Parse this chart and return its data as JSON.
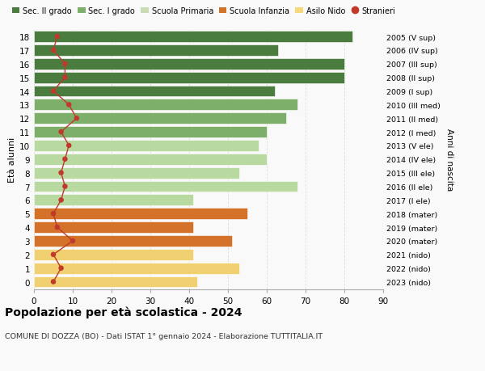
{
  "ages": [
    18,
    17,
    16,
    15,
    14,
    13,
    12,
    11,
    10,
    9,
    8,
    7,
    6,
    5,
    4,
    3,
    2,
    1,
    0
  ],
  "bar_values": [
    82,
    63,
    80,
    80,
    62,
    68,
    65,
    60,
    58,
    60,
    53,
    68,
    41,
    55,
    41,
    51,
    41,
    53,
    42
  ],
  "stranieri": [
    6,
    5,
    8,
    8,
    5,
    9,
    11,
    7,
    9,
    8,
    7,
    8,
    7,
    5,
    6,
    10,
    5,
    7,
    5
  ],
  "right_labels": [
    "2005 (V sup)",
    "2006 (IV sup)",
    "2007 (III sup)",
    "2008 (II sup)",
    "2009 (I sup)",
    "2010 (III med)",
    "2011 (II med)",
    "2012 (I med)",
    "2013 (V ele)",
    "2014 (IV ele)",
    "2015 (III ele)",
    "2016 (II ele)",
    "2017 (I ele)",
    "2018 (mater)",
    "2019 (mater)",
    "2020 (mater)",
    "2021 (nido)",
    "2022 (nido)",
    "2023 (nido)"
  ],
  "bar_colors": [
    "#4a7c3f",
    "#4a7c3f",
    "#4a7c3f",
    "#4a7c3f",
    "#4a7c3f",
    "#7daf6b",
    "#7daf6b",
    "#7daf6b",
    "#b8d9a0",
    "#b8d9a0",
    "#b8d9a0",
    "#b8d9a0",
    "#b8d9a0",
    "#d4722a",
    "#d4722a",
    "#d4722a",
    "#f0d070",
    "#f0d070",
    "#f0d070"
  ],
  "legend_labels": [
    "Sec. II grado",
    "Sec. I grado",
    "Scuola Primaria",
    "Scuola Infanzia",
    "Asilo Nido",
    "Stranieri"
  ],
  "legend_colors": [
    "#4a7c3f",
    "#7daf6b",
    "#c8ddb5",
    "#d4722a",
    "#f5d97a",
    "#c0392b"
  ],
  "ylabel_left": "Età alunni",
  "ylabel_right": "Anni di nascita",
  "title": "Popolazione per età scolastica - 2024",
  "subtitle": "COMUNE DI DOZZA (BO) - Dati ISTAT 1° gennaio 2024 - Elaborazione TUTTITALIA.IT",
  "xlim": [
    0,
    90
  ],
  "xticks": [
    0,
    10,
    20,
    30,
    40,
    50,
    60,
    70,
    80,
    90
  ],
  "bg_color": "#f9f9f9",
  "grid_color": "#dddddd",
  "stranieri_color": "#c0392b"
}
